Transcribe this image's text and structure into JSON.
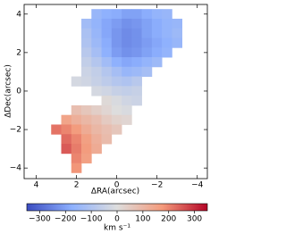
{
  "chart_data": {
    "type": "scatter",
    "colormap": "coolwarm",
    "xlabel": "ΔRA(arcsec)",
    "ylabel": "ΔDec(arcsec)",
    "clabel": "km s⁻¹",
    "xlim": [
      4.6,
      -4.5
    ],
    "ylim": [
      -4.55,
      4.5
    ],
    "clim": [
      -350,
      350
    ],
    "xticks": [
      4,
      2,
      0,
      {
        "value": -2,
        "label": "−2"
      },
      {
        "value": -4,
        "label": "−4"
      }
    ],
    "yticks": [
      {
        "value": -4,
        "label": "−4"
      },
      {
        "value": -2,
        "label": "−2"
      },
      0,
      2,
      4
    ],
    "cticks": [
      {
        "value": -300,
        "label": "−300"
      },
      {
        "value": -200,
        "label": "−200"
      },
      {
        "value": -100,
        "label": "−100"
      },
      0,
      100,
      200,
      300
    ],
    "x": [
      1,
      0.5,
      0,
      -0.5,
      -1,
      -1.5,
      -2,
      -2.5,
      1.5,
      1,
      0.5,
      0,
      -0.5,
      -1,
      -1.5,
      -2,
      -2.5,
      -3,
      1.5,
      1,
      0.5,
      0,
      -0.5,
      -1,
      -1.5,
      -2,
      -2.5,
      -3,
      1.5,
      1,
      0.5,
      0,
      -0.5,
      -1,
      -1.5,
      -2,
      -2.5,
      -3,
      1.5,
      1,
      0.5,
      0,
      -0.5,
      -1,
      -1.5,
      -2,
      -2.5,
      1.5,
      1,
      0.5,
      0,
      -0.5,
      -1,
      -1.5,
      -2,
      1.5,
      1,
      0.5,
      0,
      -0.5,
      -1,
      -1.5,
      2,
      1.5,
      1,
      0.5,
      0,
      -0.5,
      -1,
      1,
      0.5,
      0,
      -0.5,
      -1,
      0.5,
      0,
      -0.5,
      -1,
      2,
      1.5,
      1,
      0.5,
      0,
      -0.5,
      2.5,
      2,
      1.5,
      1,
      0.5,
      0,
      -0.5,
      3,
      2.5,
      2,
      1.5,
      1,
      0.5,
      0,
      2.5,
      2,
      1.5,
      1,
      0.5,
      2.5,
      2,
      1.5,
      1,
      2,
      1.5,
      2
    ],
    "y": [
      4,
      4,
      4,
      4,
      4,
      4,
      4,
      4,
      3.5,
      3.5,
      3.5,
      3.5,
      3.5,
      3.5,
      3.5,
      3.5,
      3.5,
      3.5,
      3,
      3,
      3,
      3,
      3,
      3,
      3,
      3,
      3,
      3,
      2.5,
      2.5,
      2.5,
      2.5,
      2.5,
      2.5,
      2.5,
      2.5,
      2.5,
      2.5,
      2,
      2,
      2,
      2,
      2,
      2,
      2,
      2,
      2,
      1.5,
      1.5,
      1.5,
      1.5,
      1.5,
      1.5,
      1.5,
      1.5,
      1,
      1,
      1,
      1,
      1,
      1,
      1,
      0.5,
      0.5,
      0.5,
      0.5,
      0.5,
      0.5,
      0.5,
      0,
      0,
      0,
      0,
      0,
      -0.5,
      -0.5,
      -0.5,
      -0.5,
      -1,
      -1,
      -1,
      -1,
      -1,
      -1,
      -1.5,
      -1.5,
      -1.5,
      -1.5,
      -1.5,
      -1.5,
      -1.5,
      -2,
      -2,
      -2,
      -2,
      -2,
      -2,
      -2,
      -2.5,
      -2.5,
      -2.5,
      -2.5,
      -2.5,
      -3,
      -3,
      -3,
      -3,
      -3.5,
      -3.5,
      -4
    ],
    "values": [
      -150,
      -170,
      -180,
      -200,
      -200,
      -180,
      -160,
      -150,
      -130,
      -160,
      -190,
      -210,
      -230,
      -220,
      -200,
      -180,
      -160,
      -150,
      -110,
      -150,
      -190,
      -220,
      -240,
      -230,
      -200,
      -180,
      -160,
      -140,
      -100,
      -140,
      -180,
      -220,
      -240,
      -230,
      -210,
      -190,
      -170,
      -150,
      -80,
      -120,
      -170,
      -210,
      -230,
      -220,
      -200,
      -180,
      -160,
      -60,
      -90,
      -130,
      -170,
      -190,
      -180,
      -160,
      -140,
      -40,
      -60,
      -90,
      -120,
      -150,
      -140,
      -120,
      -20,
      -30,
      -50,
      -70,
      -90,
      -100,
      -80,
      -20,
      -30,
      -50,
      -60,
      -50,
      10,
      -10,
      -30,
      -40,
      80,
      60,
      40,
      20,
      0,
      -10,
      150,
      120,
      100,
      80,
      50,
      30,
      20,
      220,
      200,
      170,
      130,
      100,
      80,
      60,
      230,
      200,
      160,
      120,
      90,
      250,
      210,
      170,
      130,
      200,
      160,
      180
    ]
  }
}
